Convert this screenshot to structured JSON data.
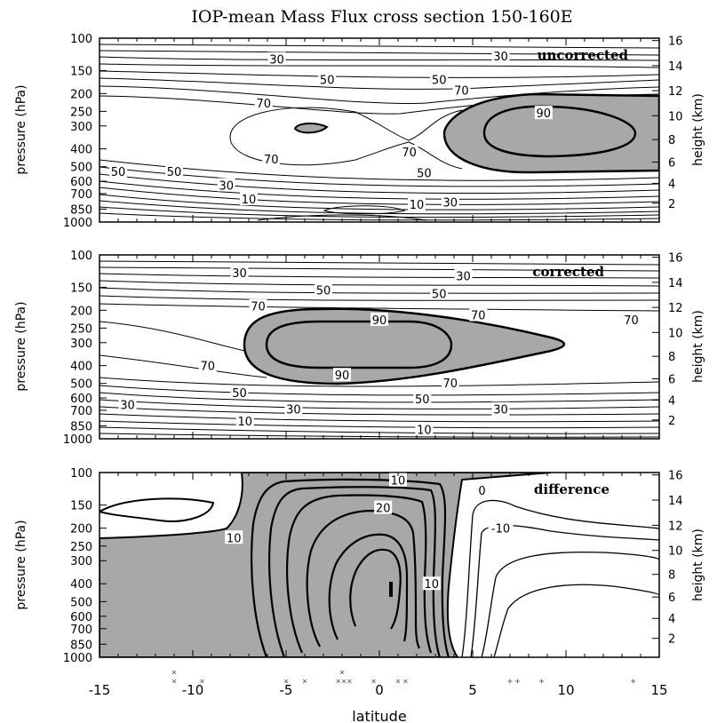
{
  "chart_data": {
    "type": "contour",
    "title": "IOP-mean Mass Flux cross section 150-160E",
    "xlabel": "latitude",
    "ylabel_left": "pressure (hPa)",
    "ylabel_right": "height (km)",
    "x_ticks": [
      "-15",
      "-10",
      "-5",
      "0",
      "5",
      "10",
      "15"
    ],
    "x_tick_values": [
      -15,
      -10,
      -5,
      0,
      5,
      10,
      15
    ],
    "xlim": [
      -15,
      15
    ],
    "pressure_ticks": [
      "100",
      "150",
      "200",
      "250",
      "300",
      "400",
      "500",
      "600",
      "700",
      "850",
      "1000"
    ],
    "pressure_values": [
      100,
      150,
      200,
      250,
      300,
      400,
      500,
      600,
      700,
      850,
      1000
    ],
    "ylim_hpa": [
      100,
      1000
    ],
    "y_scale": "log",
    "height_ticks": [
      "2",
      "4",
      "6",
      "8",
      "10",
      "12",
      "14",
      "16"
    ],
    "height_values_hpa": [
      790,
      616,
      472,
      356,
      264,
      193,
      141,
      103
    ],
    "panels": [
      {
        "name": "uncorrected",
        "shaded_threshold": 80,
        "labels": [
          {
            "text": "30",
            "lat": -5.5,
            "p": 130
          },
          {
            "text": "30",
            "lat": 6.5,
            "p": 125
          },
          {
            "text": "50",
            "lat": -2.8,
            "p": 168
          },
          {
            "text": "50",
            "lat": 3.2,
            "p": 168
          },
          {
            "text": "70",
            "lat": -6.2,
            "p": 225
          },
          {
            "text": "70",
            "lat": 4.4,
            "p": 192
          },
          {
            "text": "90",
            "lat": 8.8,
            "p": 255
          },
          {
            "text": "70",
            "lat": -5.8,
            "p": 455
          },
          {
            "text": "70",
            "lat": 1.6,
            "p": 415
          },
          {
            "text": "50",
            "lat": -14.0,
            "p": 530
          },
          {
            "text": "50",
            "lat": -11.0,
            "p": 530
          },
          {
            "text": "50",
            "lat": 2.4,
            "p": 540
          },
          {
            "text": "30",
            "lat": -8.2,
            "p": 630
          },
          {
            "text": "10",
            "lat": -7.0,
            "p": 750
          },
          {
            "text": "10",
            "lat": 2.0,
            "p": 800
          },
          {
            "text": "30",
            "lat": 3.8,
            "p": 780
          }
        ]
      },
      {
        "name": "corrected",
        "shaded_threshold": 80,
        "labels": [
          {
            "text": "30",
            "lat": -7.5,
            "p": 125
          },
          {
            "text": "30",
            "lat": 4.5,
            "p": 130
          },
          {
            "text": "50",
            "lat": -3.0,
            "p": 155
          },
          {
            "text": "50",
            "lat": 3.2,
            "p": 162
          },
          {
            "text": "70",
            "lat": -6.5,
            "p": 190
          },
          {
            "text": "70",
            "lat": 5.3,
            "p": 212
          },
          {
            "text": "70",
            "lat": 13.5,
            "p": 225
          },
          {
            "text": "90",
            "lat": 0.0,
            "p": 225
          },
          {
            "text": "90",
            "lat": -2.0,
            "p": 450
          },
          {
            "text": "70",
            "lat": -9.2,
            "p": 400
          },
          {
            "text": "70",
            "lat": 3.8,
            "p": 495
          },
          {
            "text": "50",
            "lat": -7.5,
            "p": 560
          },
          {
            "text": "50",
            "lat": 2.3,
            "p": 605
          },
          {
            "text": "30",
            "lat": -13.5,
            "p": 650
          },
          {
            "text": "30",
            "lat": -4.6,
            "p": 690
          },
          {
            "text": "30",
            "lat": 6.5,
            "p": 690
          },
          {
            "text": "10",
            "lat": -7.2,
            "p": 800
          },
          {
            "text": "10",
            "lat": 2.4,
            "p": 890
          }
        ]
      },
      {
        "name": "difference",
        "shaded_threshold": 0,
        "labels": [
          {
            "text": "10",
            "lat": 1.0,
            "p": 110
          },
          {
            "text": "0",
            "lat": 5.5,
            "p": 125
          },
          {
            "text": "20",
            "lat": 0.2,
            "p": 155
          },
          {
            "text": "-10",
            "lat": 6.5,
            "p": 200
          },
          {
            "text": "10",
            "lat": -7.8,
            "p": 225
          },
          {
            "text": "10",
            "lat": 2.8,
            "p": 400
          }
        ]
      }
    ],
    "station_markers": [
      {
        "symbol": "×",
        "lat": -11.0,
        "row": 1
      },
      {
        "symbol": "×",
        "lat": -11.0,
        "row": 2
      },
      {
        "symbol": "×",
        "lat": -9.5,
        "row": 2
      },
      {
        "symbol": "×",
        "lat": -5.0,
        "row": 2
      },
      {
        "symbol": "×",
        "lat": -4.0,
        "row": 2
      },
      {
        "symbol": "×",
        "lat": -2.2,
        "row": 2
      },
      {
        "symbol": "×",
        "lat": -1.9,
        "row": 2
      },
      {
        "symbol": "×",
        "lat": -1.6,
        "row": 2
      },
      {
        "symbol": "×",
        "lat": -2.0,
        "row": 1
      },
      {
        "symbol": "×",
        "lat": -0.3,
        "row": 2
      },
      {
        "symbol": "×",
        "lat": 1.0,
        "row": 2
      },
      {
        "symbol": "×",
        "lat": 1.4,
        "row": 2
      },
      {
        "symbol": "+",
        "lat": 7.0,
        "row": 2
      },
      {
        "symbol": "+",
        "lat": 7.4,
        "row": 2
      },
      {
        "symbol": "+",
        "lat": 8.7,
        "row": 2
      },
      {
        "symbol": "+",
        "lat": 13.6,
        "row": 2
      }
    ]
  }
}
